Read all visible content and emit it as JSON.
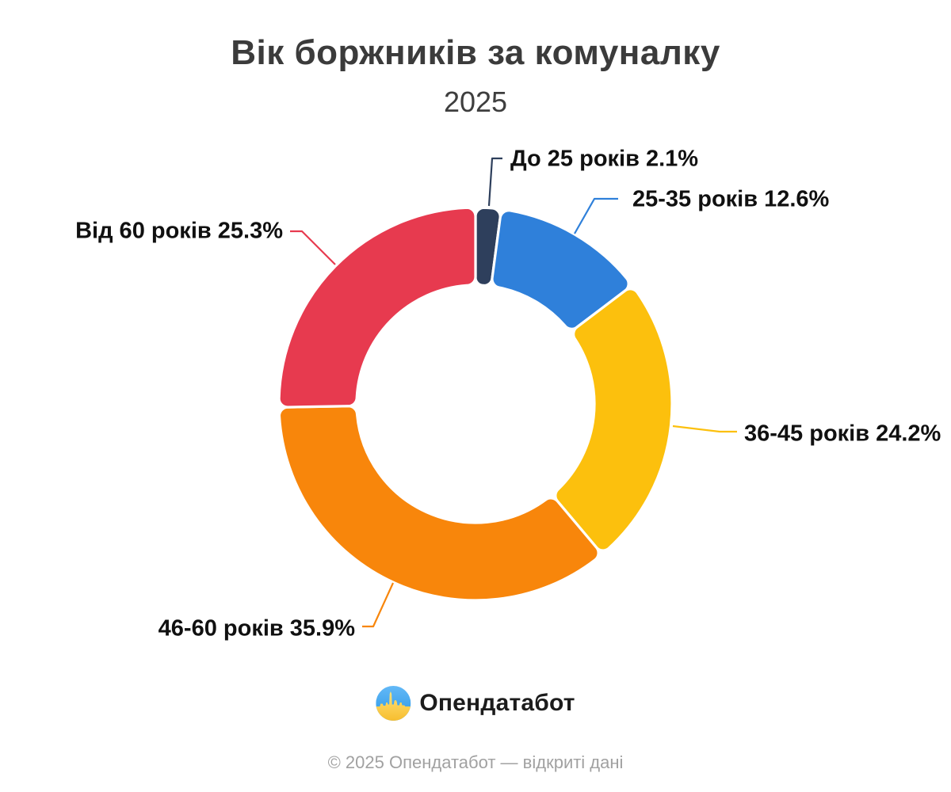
{
  "header": {
    "title": "Вік боржників за комуналку",
    "subtitle": "2025"
  },
  "chart_data": {
    "type": "pie",
    "variant": "donut",
    "title": "Вік боржників за комуналку",
    "subtitle": "2025",
    "unit": "%",
    "start_angle": "12-oclock",
    "direction": "clockwise",
    "inner_radius_ratio": 0.6,
    "legend_position": "outside-labels-with-leader-lines",
    "slices": [
      {
        "label": "До 25 років",
        "value": 2.1,
        "display": "До 25 років 2.1%",
        "color": "#2e3f5c"
      },
      {
        "label": "25-35 років",
        "value": 12.6,
        "display": "25-35 років 12.6%",
        "color": "#2f80da"
      },
      {
        "label": "36-45 років",
        "value": 24.2,
        "display": "36-45 років 24.2%",
        "color": "#fcc00d"
      },
      {
        "label": "46-60 років",
        "value": 35.9,
        "display": "46-60 років 35.9%",
        "color": "#f8860b"
      },
      {
        "label": "Від 60 років",
        "value": 25.3,
        "display": "Від 60 років 25.3%",
        "color": "#e73a4f"
      }
    ]
  },
  "footer": {
    "logo_text": "Опендатабот",
    "copyright": "© 2025 Опендатабот — відкриті дані"
  }
}
